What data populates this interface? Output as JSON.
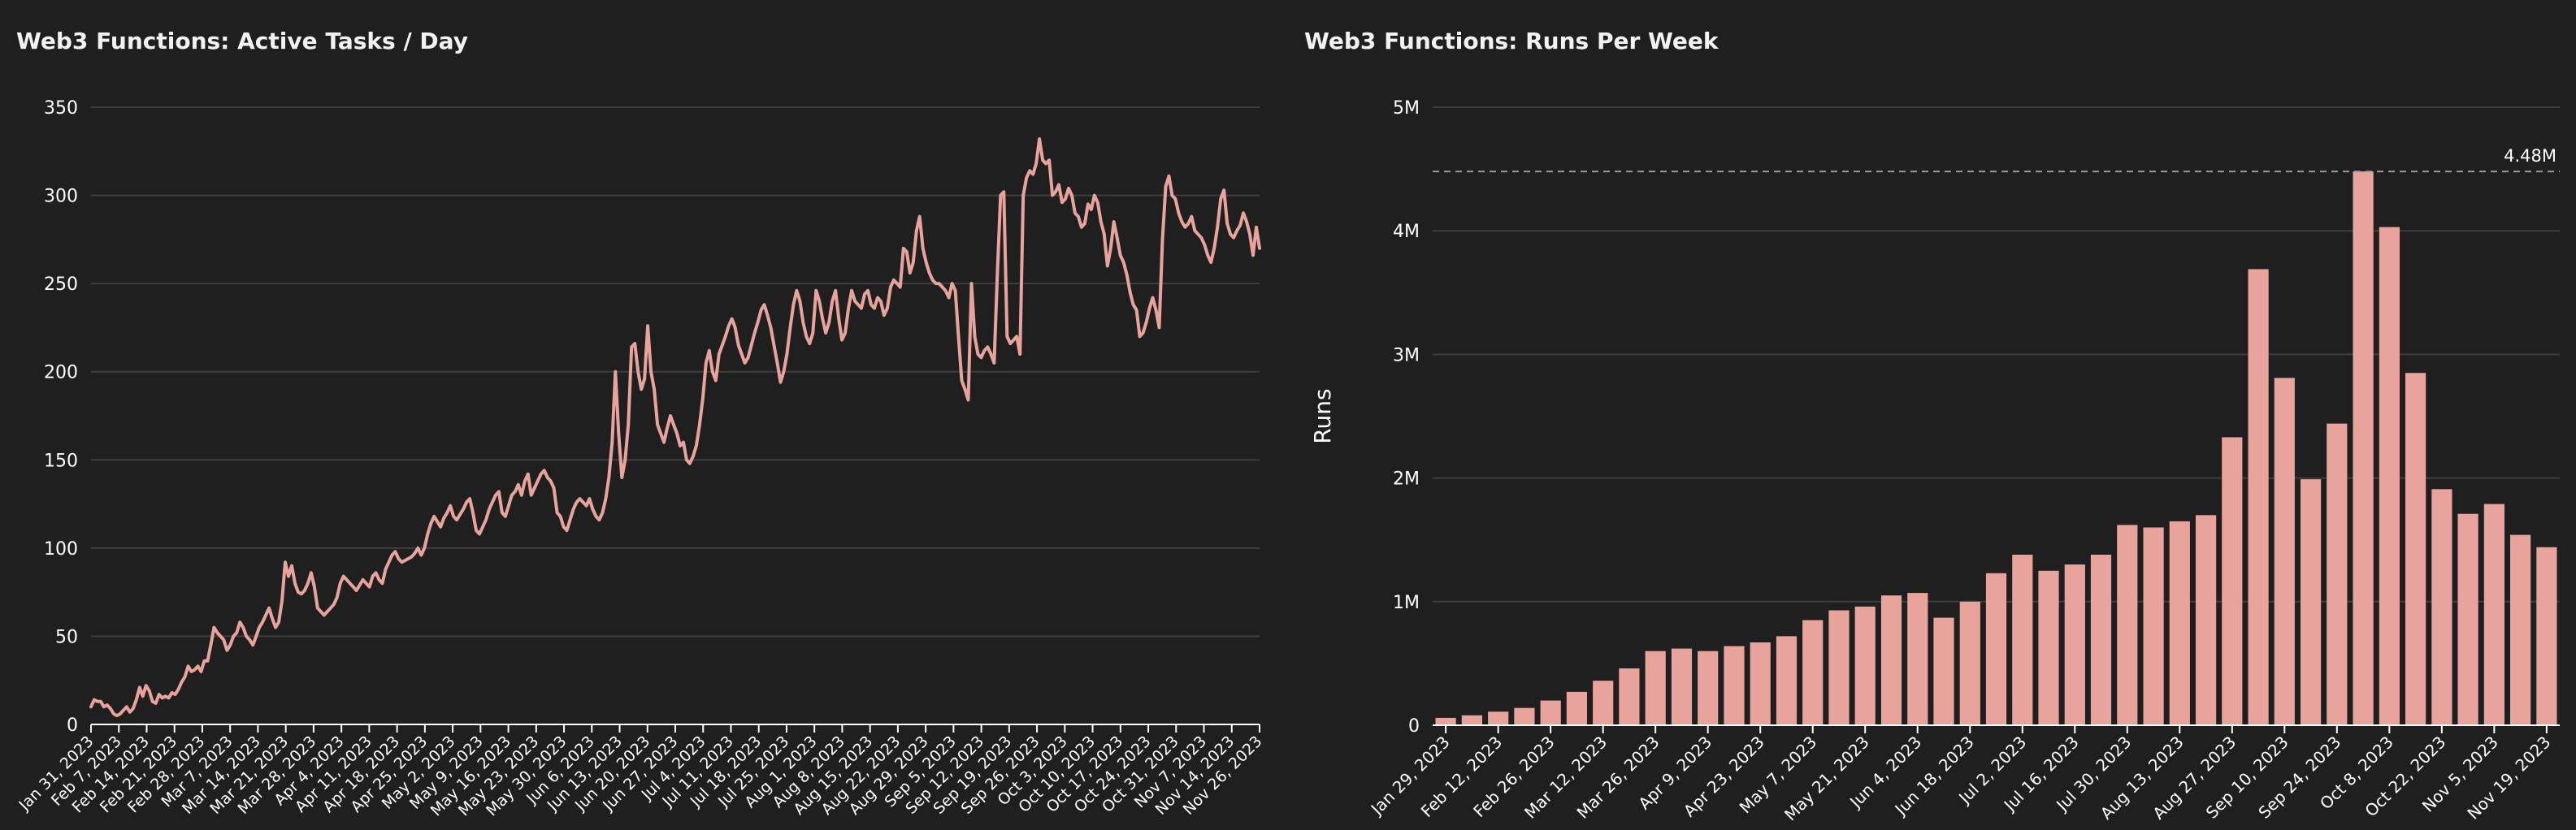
{
  "chart_data": [
    {
      "type": "line",
      "title": "Web3 Functions: Active Tasks / Day",
      "xlabel": "",
      "ylabel": "",
      "ylim": [
        0,
        350
      ],
      "yticks": [
        0,
        50,
        100,
        150,
        200,
        250,
        300,
        350
      ],
      "grid": true,
      "line_color": "#e8a39d",
      "xtick_labels": [
        "Jan 31, 2023",
        "Feb 7, 2023",
        "Feb 14, 2023",
        "Feb 21, 2023",
        "Feb 28, 2023",
        "Mar 7, 2023",
        "Mar 14, 2023",
        "Mar 21, 2023",
        "Mar 28, 2023",
        "Apr 4, 2023",
        "Apr 11, 2023",
        "Apr 18, 2023",
        "Apr 25, 2023",
        "May 2, 2023",
        "May 9, 2023",
        "May 16, 2023",
        "May 23, 2023",
        "May 30, 2023",
        "Jun 6, 2023",
        "Jun 13, 2023",
        "Jun 20, 2023",
        "Jun 27, 2023",
        "Jul 4, 2023",
        "Jul 11, 2023",
        "Jul 18, 2023",
        "Jul 25, 2023",
        "Aug 1, 2023",
        "Aug 8, 2023",
        "Aug 15, 2023",
        "Aug 22, 2023",
        "Aug 29, 2023",
        "Sep 5, 2023",
        "Sep 12, 2023",
        "Sep 19, 2023",
        "Sep 26, 2023",
        "Oct 3, 2023",
        "Oct 10, 2023",
        "Oct 17, 2023",
        "Oct 24, 2023",
        "Oct 31, 2023",
        "Nov 7, 2023",
        "Nov 14, 2023",
        "Nov 26, 2023"
      ],
      "values": [
        10,
        14,
        13,
        13,
        10,
        11,
        9,
        6,
        5,
        6,
        8,
        10,
        7,
        9,
        14,
        21,
        16,
        22,
        19,
        13,
        12,
        17,
        15,
        16,
        15,
        18,
        17,
        20,
        24,
        27,
        33,
        30,
        31,
        33,
        30,
        36,
        36,
        45,
        55,
        52,
        50,
        48,
        42,
        45,
        50,
        52,
        58,
        55,
        50,
        48,
        45,
        50,
        55,
        58,
        62,
        66,
        60,
        55,
        58,
        70,
        92,
        84,
        90,
        80,
        75,
        74,
        76,
        80,
        86,
        78,
        66,
        64,
        62,
        64,
        66,
        68,
        72,
        80,
        84,
        82,
        80,
        78,
        76,
        79,
        82,
        80,
        78,
        84,
        86,
        82,
        80,
        88,
        92,
        96,
        98,
        94,
        92,
        93,
        94,
        95,
        97,
        100,
        96,
        100,
        108,
        114,
        118,
        115,
        112,
        117,
        120,
        124,
        118,
        116,
        119,
        122,
        126,
        128,
        120,
        110,
        108,
        112,
        116,
        122,
        126,
        130,
        132,
        120,
        118,
        124,
        130,
        132,
        136,
        130,
        138,
        142,
        130,
        134,
        138,
        142,
        144,
        140,
        138,
        134,
        120,
        118,
        112,
        110,
        116,
        122,
        126,
        128,
        126,
        124,
        128,
        122,
        118,
        116,
        120,
        128,
        140,
        160,
        200,
        165,
        140,
        150,
        170,
        214,
        216,
        200,
        190,
        196,
        226,
        200,
        190,
        170,
        165,
        160,
        168,
        175,
        170,
        165,
        158,
        160,
        150,
        148,
        152,
        158,
        170,
        185,
        205,
        212,
        200,
        195,
        210,
        215,
        220,
        226,
        230,
        225,
        215,
        210,
        205,
        208,
        215,
        222,
        228,
        235,
        238,
        232,
        225,
        215,
        205,
        194,
        200,
        210,
        225,
        238,
        246,
        240,
        228,
        220,
        216,
        222,
        246,
        240,
        230,
        222,
        228,
        240,
        246,
        230,
        218,
        222,
        236,
        246,
        240,
        238,
        236,
        244,
        246,
        238,
        236,
        242,
        240,
        232,
        236,
        248,
        252,
        250,
        248,
        270,
        268,
        256,
        262,
        280,
        288,
        270,
        262,
        256,
        252,
        250,
        250,
        248,
        246,
        242,
        250,
        246,
        220,
        195,
        190,
        184,
        250,
        220,
        210,
        208,
        212,
        214,
        210,
        205,
        255,
        300,
        302,
        220,
        216,
        218,
        220,
        210,
        300,
        310,
        314,
        312,
        318,
        332,
        320,
        318,
        320,
        300,
        302,
        306,
        296,
        298,
        304,
        300,
        290,
        288,
        282,
        284,
        295,
        292,
        300,
        296,
        285,
        278,
        260,
        270,
        285,
        276,
        266,
        262,
        255,
        245,
        238,
        235,
        220,
        222,
        228,
        236,
        242,
        235,
        225,
        275,
        305,
        311,
        300,
        298,
        290,
        285,
        282,
        284,
        288,
        280,
        278,
        276,
        272,
        266,
        262,
        270,
        282,
        298,
        303,
        284,
        278,
        276,
        280,
        283,
        290,
        285,
        278,
        266,
        282,
        270
      ]
    },
    {
      "type": "bar",
      "title": "Web3 Functions: Runs Per Week",
      "xlabel": "",
      "ylabel": "Runs",
      "ylim": [
        0,
        5000000
      ],
      "yticks": [
        0,
        1000000,
        2000000,
        3000000,
        4000000,
        5000000
      ],
      "ytick_labels": [
        "0",
        "1M",
        "2M",
        "3M",
        "4M",
        "5M"
      ],
      "grid": true,
      "bar_color": "#e8a39d",
      "reference_line": {
        "value": 4480000,
        "label": "4.48M"
      },
      "xtick_labels": [
        "Jan 29, 2023",
        "Feb 12, 2023",
        "Feb 26, 2023",
        "Mar 12, 2023",
        "Mar 26, 2023",
        "Apr 9, 2023",
        "Apr 23, 2023",
        "May 7, 2023",
        "May 21, 2023",
        "Jun 4, 2023",
        "Jun 18, 2023",
        "Jul 2, 2023",
        "Jul 16, 2023",
        "Jul 30, 2023",
        "Aug 13, 2023",
        "Aug 27, 2023",
        "Sep 10, 2023",
        "Sep 24, 2023",
        "Oct 8, 2023",
        "Oct 22, 2023",
        "Nov 5, 2023",
        "Nov 19, 2023"
      ],
      "values": [
        60000,
        80000,
        110000,
        140000,
        200000,
        270000,
        360000,
        460000,
        600000,
        620000,
        600000,
        640000,
        670000,
        720000,
        850000,
        930000,
        960000,
        1050000,
        1070000,
        870000,
        1000000,
        1230000,
        1380000,
        1250000,
        1300000,
        1380000,
        1620000,
        1600000,
        1650000,
        1700000,
        2330000,
        3690000,
        2810000,
        1990000,
        2440000,
        4480000,
        4030000,
        2850000,
        1910000,
        1710000,
        1790000,
        1540000,
        1440000
      ]
    }
  ]
}
